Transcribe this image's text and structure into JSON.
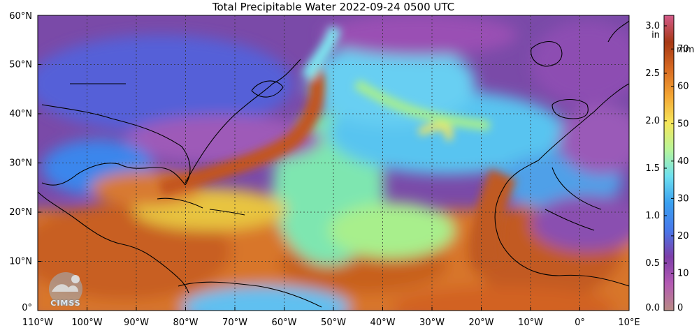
{
  "title": "Total Precipitable Water  2022-09-24 0500 UTC",
  "map": {
    "lon_range": [
      -110,
      10
    ],
    "lat_range": [
      0,
      60
    ],
    "lon_ticks": [
      {
        "value": -110,
        "label": "110°W"
      },
      {
        "value": -100,
        "label": "100°W"
      },
      {
        "value": -90,
        "label": "90°W"
      },
      {
        "value": -80,
        "label": "80°W"
      },
      {
        "value": -70,
        "label": "70°W"
      },
      {
        "value": -60,
        "label": "60°W"
      },
      {
        "value": -50,
        "label": "50°W"
      },
      {
        "value": -40,
        "label": "40°W"
      },
      {
        "value": -30,
        "label": "30°W"
      },
      {
        "value": -20,
        "label": "20°W"
      },
      {
        "value": -10,
        "label": "10°W"
      },
      {
        "value": 0,
        "label": "0°"
      },
      {
        "value": 10,
        "label": "10°E"
      }
    ],
    "lat_ticks": [
      {
        "value": 0,
        "label": "0°"
      },
      {
        "value": 10,
        "label": "10°N"
      },
      {
        "value": 20,
        "label": "20°N"
      },
      {
        "value": 30,
        "label": "30°N"
      },
      {
        "value": 40,
        "label": "40°N"
      },
      {
        "value": 50,
        "label": "50°N"
      },
      {
        "value": 60,
        "label": "60°N"
      }
    ],
    "grid": "dashed"
  },
  "colorbar": {
    "inch_unit": "in",
    "mm_unit": "mm",
    "inch_ticks": [
      {
        "value": 0.0,
        "label": "0.0"
      },
      {
        "value": 0.5,
        "label": "0.5"
      },
      {
        "value": 1.0,
        "label": "1.0"
      },
      {
        "value": 1.5,
        "label": "1.5"
      },
      {
        "value": 2.0,
        "label": "2.0"
      },
      {
        "value": 2.5,
        "label": "2.5"
      },
      {
        "value": 3.0,
        "label": "3.0"
      }
    ],
    "mm_ticks": [
      {
        "value": 0,
        "label": "0"
      },
      {
        "value": 10,
        "label": "10"
      },
      {
        "value": 20,
        "label": "20"
      },
      {
        "value": 30,
        "label": "30"
      },
      {
        "value": 40,
        "label": "40"
      },
      {
        "value": 50,
        "label": "50"
      },
      {
        "value": 60,
        "label": "60"
      },
      {
        "value": 70,
        "label": "70"
      }
    ],
    "mm_max": 79,
    "color_stops": [
      "#b98b84",
      "#b35ab3",
      "#7d3ea8",
      "#4878ea",
      "#3aa0f0",
      "#6ee0f0",
      "#b8f59a",
      "#f6e65a",
      "#f3a534",
      "#d76a22",
      "#a63814",
      "#d45a8a"
    ]
  },
  "logo": {
    "text": "CIMSS"
  }
}
